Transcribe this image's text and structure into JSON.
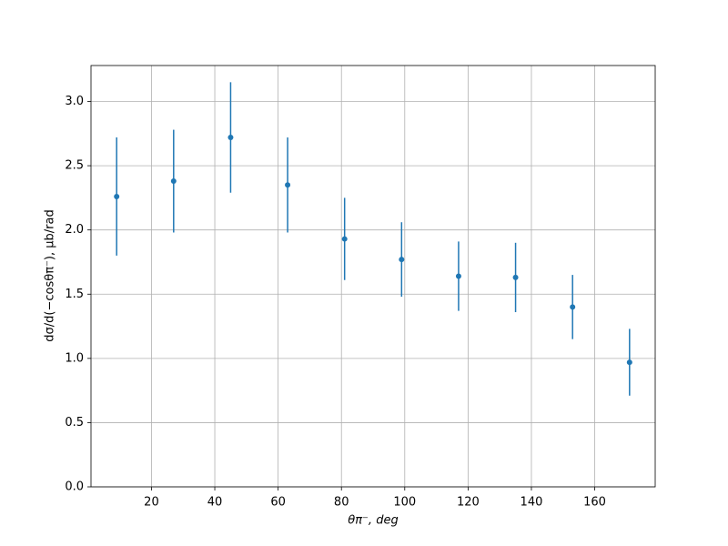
{
  "chart_data": {
    "type": "errorbar",
    "xlabel": "θπ⁻, deg",
    "ylabel": "dσ/d(−cosθπ⁻), μb/rad",
    "x": [
      9,
      27,
      45,
      63,
      81,
      99,
      117,
      135,
      153,
      171
    ],
    "series": [
      {
        "color": "#1f77b4",
        "values": [
          2.26,
          2.38,
          2.72,
          2.35,
          1.93,
          1.77,
          1.64,
          1.63,
          1.4,
          0.97
        ],
        "errors": [
          0.46,
          0.4,
          0.43,
          0.37,
          0.32,
          0.29,
          0.27,
          0.27,
          0.25,
          0.26
        ]
      }
    ],
    "xlim": [
      0.9,
      179.1
    ],
    "ylim": [
      0,
      3.28
    ],
    "xticks": [
      20,
      40,
      60,
      80,
      100,
      120,
      140,
      160
    ],
    "yticks": [
      {
        "value": 0,
        "label": "0.0"
      },
      {
        "value": 0.5,
        "label": "0.5"
      },
      {
        "value": 1,
        "label": "1.0"
      },
      {
        "value": 1.5,
        "label": "1.5"
      },
      {
        "value": 2,
        "label": "2.0"
      },
      {
        "value": 2.5,
        "label": "2.5"
      },
      {
        "value": 3,
        "label": "3.0"
      }
    ],
    "grid": true
  }
}
